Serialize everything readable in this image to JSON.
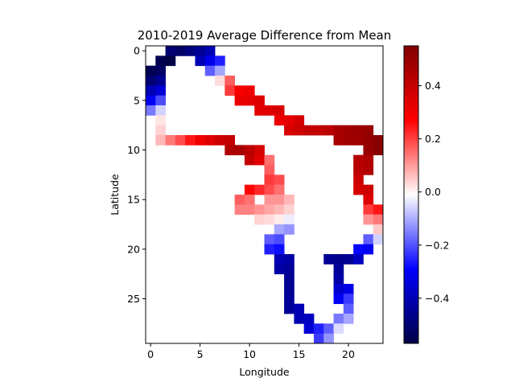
{
  "chart_data": {
    "type": "heatmap",
    "title": "2010-2019 Average Difference from Mean",
    "xlabel": "Longitude",
    "ylabel": "Latitude",
    "grid": false,
    "cols": 24,
    "rows": 30,
    "x_ticks": [
      0,
      5,
      10,
      15,
      20
    ],
    "y_ticks": [
      0,
      5,
      10,
      15,
      20,
      25
    ],
    "colormap": "seismic",
    "colorbar": {
      "vmin": -0.57,
      "vmax": 0.55,
      "ticks": [
        -0.4,
        -0.2,
        0.0,
        0.2,
        0.4
      ],
      "tick_labels": [
        "−0.4",
        "−0.2",
        "0.0",
        "0.2",
        "0.4"
      ]
    },
    "cells": [
      [
        2,
        0,
        -0.5
      ],
      [
        3,
        0,
        -0.52
      ],
      [
        4,
        0,
        -0.48
      ],
      [
        5,
        0,
        -0.45
      ],
      [
        6,
        0,
        -0.4
      ],
      [
        1,
        1,
        -0.55
      ],
      [
        2,
        1,
        -0.57
      ],
      [
        5,
        1,
        -0.4
      ],
      [
        6,
        1,
        -0.32
      ],
      [
        7,
        1,
        -0.25
      ],
      [
        0,
        2,
        -0.55
      ],
      [
        1,
        2,
        -0.52
      ],
      [
        6,
        2,
        -0.18
      ],
      [
        7,
        2,
        -0.1
      ],
      [
        0,
        3,
        -0.5
      ],
      [
        1,
        3,
        -0.45
      ],
      [
        7,
        3,
        0.04
      ],
      [
        8,
        3,
        0.18
      ],
      [
        0,
        4,
        -0.4
      ],
      [
        1,
        4,
        -0.35
      ],
      [
        8,
        4,
        0.22
      ],
      [
        9,
        4,
        0.3
      ],
      [
        10,
        4,
        0.32
      ],
      [
        0,
        5,
        -0.3
      ],
      [
        1,
        5,
        -0.2
      ],
      [
        9,
        5,
        0.33
      ],
      [
        10,
        5,
        0.34
      ],
      [
        11,
        5,
        0.36
      ],
      [
        0,
        6,
        -0.15
      ],
      [
        1,
        6,
        -0.05
      ],
      [
        11,
        6,
        0.35
      ],
      [
        12,
        6,
        0.36
      ],
      [
        13,
        6,
        0.37
      ],
      [
        1,
        7,
        0.03
      ],
      [
        13,
        7,
        0.32
      ],
      [
        14,
        7,
        0.34
      ],
      [
        15,
        7,
        0.38
      ],
      [
        1,
        8,
        0.05
      ],
      [
        14,
        8,
        0.38
      ],
      [
        15,
        8,
        0.4
      ],
      [
        16,
        8,
        0.42
      ],
      [
        17,
        8,
        0.42
      ],
      [
        18,
        8,
        0.44
      ],
      [
        19,
        8,
        0.48
      ],
      [
        20,
        8,
        0.5
      ],
      [
        21,
        8,
        0.51
      ],
      [
        22,
        8,
        0.52
      ],
      [
        1,
        9,
        0.08
      ],
      [
        2,
        9,
        0.15
      ],
      [
        3,
        9,
        0.2
      ],
      [
        4,
        9,
        0.26
      ],
      [
        5,
        9,
        0.32
      ],
      [
        6,
        9,
        0.36
      ],
      [
        7,
        9,
        0.4
      ],
      [
        8,
        9,
        0.42
      ],
      [
        19,
        9,
        0.48
      ],
      [
        20,
        9,
        0.5
      ],
      [
        21,
        9,
        0.5
      ],
      [
        22,
        9,
        0.53
      ],
      [
        23,
        9,
        0.55
      ],
      [
        8,
        10,
        0.46
      ],
      [
        9,
        10,
        0.48
      ],
      [
        10,
        10,
        0.44
      ],
      [
        11,
        10,
        0.38
      ],
      [
        22,
        10,
        0.52
      ],
      [
        23,
        10,
        0.55
      ],
      [
        10,
        11,
        0.42
      ],
      [
        11,
        11,
        0.35
      ],
      [
        12,
        11,
        0.16
      ],
      [
        21,
        11,
        0.45
      ],
      [
        22,
        11,
        0.46
      ],
      [
        12,
        12,
        0.18
      ],
      [
        21,
        12,
        0.44
      ],
      [
        22,
        12,
        0.46
      ],
      [
        12,
        13,
        0.22
      ],
      [
        13,
        13,
        0.2
      ],
      [
        21,
        13,
        0.4
      ],
      [
        10,
        14,
        0.28
      ],
      [
        11,
        14,
        0.24
      ],
      [
        12,
        14,
        0.2
      ],
      [
        13,
        14,
        0.16
      ],
      [
        21,
        14,
        0.38
      ],
      [
        22,
        14,
        0.4
      ],
      [
        9,
        15,
        0.18
      ],
      [
        10,
        15,
        0.16
      ],
      [
        12,
        15,
        0.12
      ],
      [
        13,
        15,
        0.12
      ],
      [
        14,
        15,
        0.08
      ],
      [
        22,
        15,
        0.36
      ],
      [
        9,
        16,
        0.14
      ],
      [
        10,
        16,
        0.14
      ],
      [
        11,
        16,
        0.12
      ],
      [
        12,
        16,
        0.1
      ],
      [
        13,
        16,
        0.08
      ],
      [
        14,
        16,
        0.05
      ],
      [
        22,
        16,
        0.22
      ],
      [
        23,
        16,
        0.26
      ],
      [
        11,
        17,
        0.05
      ],
      [
        12,
        17,
        0.04
      ],
      [
        13,
        17,
        0.02
      ],
      [
        14,
        17,
        -0.02
      ],
      [
        22,
        17,
        0.12
      ],
      [
        23,
        17,
        0.15
      ],
      [
        13,
        18,
        -0.1
      ],
      [
        14,
        18,
        -0.12
      ],
      [
        23,
        18,
        0.06
      ],
      [
        12,
        19,
        -0.18
      ],
      [
        13,
        19,
        -0.2
      ],
      [
        22,
        19,
        -0.18
      ],
      [
        23,
        19,
        -0.05
      ],
      [
        12,
        20,
        -0.25
      ],
      [
        13,
        20,
        -0.27
      ],
      [
        21,
        20,
        -0.28
      ],
      [
        22,
        20,
        -0.3
      ],
      [
        13,
        21,
        -0.4
      ],
      [
        14,
        21,
        -0.42
      ],
      [
        18,
        21,
        -0.45
      ],
      [
        19,
        21,
        -0.46
      ],
      [
        20,
        21,
        -0.45
      ],
      [
        21,
        21,
        -0.38
      ],
      [
        13,
        22,
        -0.42
      ],
      [
        14,
        22,
        -0.44
      ],
      [
        19,
        22,
        -0.44
      ],
      [
        14,
        23,
        -0.45
      ],
      [
        19,
        23,
        -0.42
      ],
      [
        14,
        24,
        -0.45
      ],
      [
        19,
        24,
        -0.36
      ],
      [
        20,
        24,
        -0.32
      ],
      [
        14,
        25,
        -0.44
      ],
      [
        19,
        25,
        -0.3
      ],
      [
        20,
        25,
        -0.22
      ],
      [
        14,
        26,
        -0.44
      ],
      [
        15,
        26,
        -0.4
      ],
      [
        20,
        26,
        -0.18
      ],
      [
        15,
        27,
        -0.4
      ],
      [
        16,
        27,
        -0.38
      ],
      [
        19,
        27,
        -0.15
      ],
      [
        20,
        27,
        -0.1
      ],
      [
        16,
        28,
        -0.35
      ],
      [
        17,
        28,
        -0.25
      ],
      [
        18,
        28,
        -0.18
      ],
      [
        19,
        28,
        -0.04
      ],
      [
        17,
        29,
        -0.22
      ],
      [
        18,
        29,
        -0.12
      ]
    ]
  }
}
